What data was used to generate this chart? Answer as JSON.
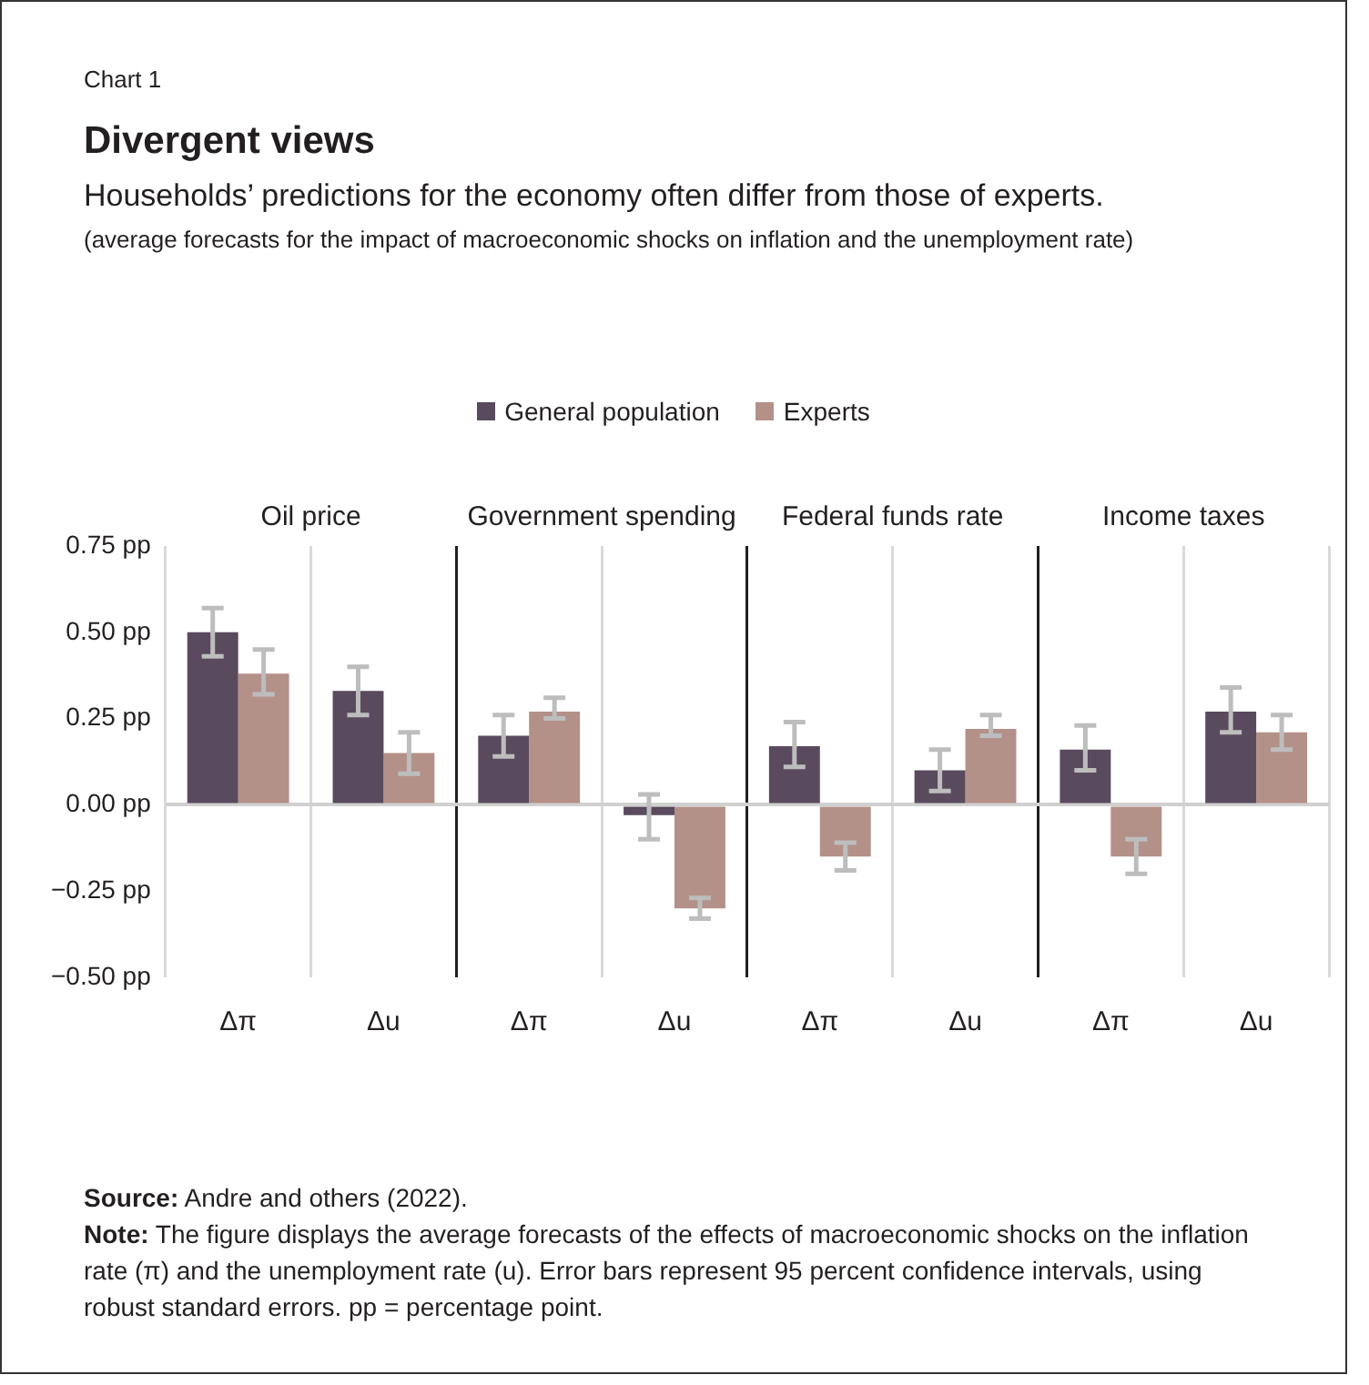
{
  "chart_data": {
    "type": "bar",
    "title": "Divergent views",
    "subtitle": "Households’ predictions for the economy often differ from those of experts.",
    "categories": [
      "Δπ",
      "Δu",
      "Δπ",
      "Δu",
      "Δπ",
      "Δu",
      "Δπ",
      "Δu"
    ],
    "series": [
      {
        "name": "General population",
        "color": "#5a4a5e",
        "values": [
          0.5,
          0.33,
          0.2,
          -0.03,
          0.17,
          0.1,
          0.16,
          0.27
        ],
        "errors": [
          [
            0.43,
            0.57
          ],
          [
            0.26,
            0.4
          ],
          [
            0.14,
            0.26
          ],
          [
            -0.1,
            0.03
          ],
          [
            0.11,
            0.24
          ],
          [
            0.04,
            0.16
          ],
          [
            0.1,
            0.23
          ],
          [
            0.21,
            0.34
          ]
        ]
      },
      {
        "name": "Experts",
        "color": "#b39188",
        "values": [
          0.38,
          0.15,
          0.27,
          -0.3,
          -0.15,
          0.22,
          -0.15,
          0.21
        ],
        "errors": [
          [
            0.32,
            0.45
          ],
          [
            0.09,
            0.21
          ],
          [
            0.25,
            0.31
          ],
          [
            -0.33,
            -0.27
          ],
          [
            -0.19,
            -0.11
          ],
          [
            0.2,
            0.26
          ],
          [
            -0.2,
            -0.1
          ],
          [
            0.16,
            0.26
          ]
        ]
      }
    ],
    "ylim": [
      -0.5,
      0.75
    ],
    "yticks": [
      {
        "value": -0.5,
        "label": "−0.50 pp"
      },
      {
        "value": -0.25,
        "label": "−0.25 pp"
      },
      {
        "value": 0,
        "label": "0.00 pp"
      },
      {
        "value": 0.25,
        "label": "0.25 pp"
      },
      {
        "value": 0.5,
        "label": "0.50 pp"
      },
      {
        "value": 0.75,
        "label": "0.75 pp"
      }
    ],
    "grid": "x",
    "legend": "top",
    "annotations": [
      "Chart 1",
      "(average forecasts for the impact of macroeconomic shocks on inflation and the unemployment rate)",
      "Oil price",
      "Government spending",
      "Federal funds rate",
      "Income taxes",
      "Source: Andre and others (2022).",
      "Note: The figure displays the average forecasts of the effects of macroeconomic shocks on the inflation rate (π) and the unemployment rate (u). Error bars represent 95 percent confidence intervals, using robust standard errors. pp = percentage point."
    ]
  }
}
